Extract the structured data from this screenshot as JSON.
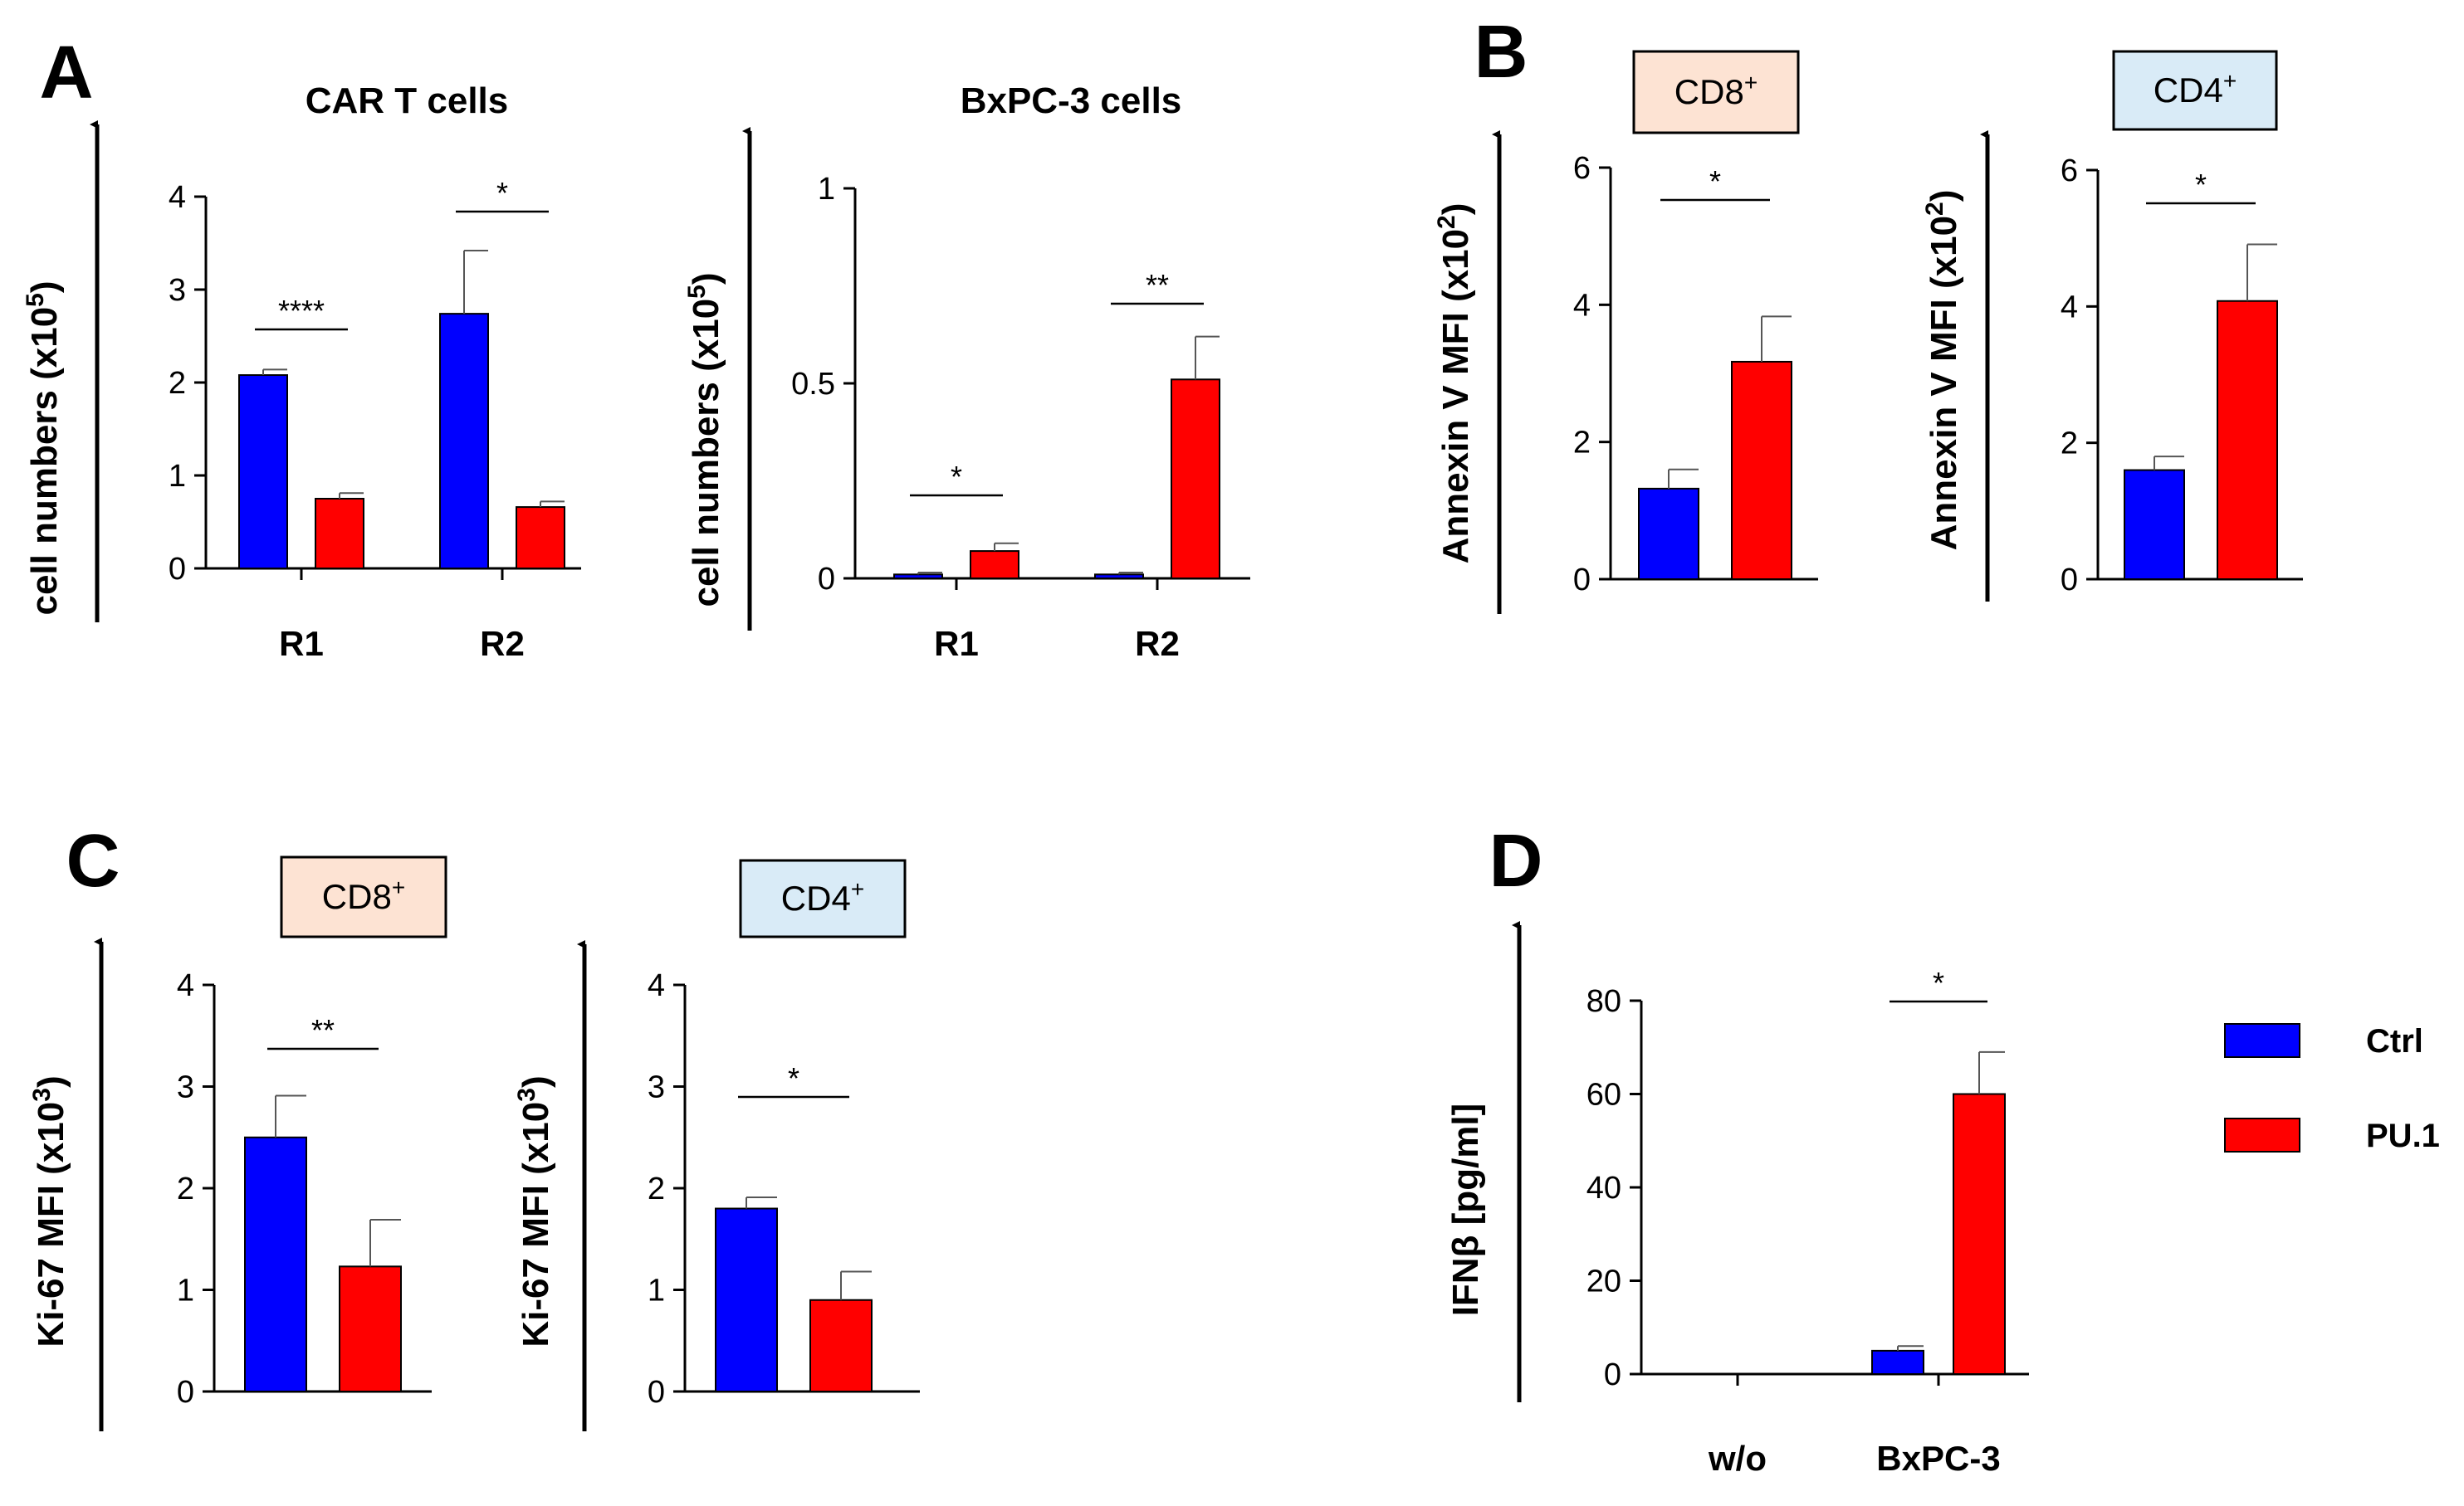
{
  "colors": {
    "ctrl": "#0000ff",
    "pu1": "#ff0000",
    "cd8_box": "#fde3d3",
    "cd4_box": "#d9ebf7"
  },
  "legend": [
    {
      "label": "Ctrl",
      "color": "#0000ff"
    },
    {
      "label": "PU.1",
      "color": "#ff0000"
    }
  ],
  "chart_data": [
    {
      "panel": "A",
      "type": "bar",
      "title": "CAR T cells",
      "box_label": "",
      "ylabel": "cell numbers (x10",
      "ylabel_sup": "5",
      "ylabel_end": ")",
      "categories": [
        "R1",
        "R2"
      ],
      "series": [
        {
          "name": "Ctrl",
          "color": "#0000ff",
          "values": [
            2.08,
            2.74
          ],
          "errors": [
            0.06,
            0.68
          ]
        },
        {
          "name": "PU.1",
          "color": "#ff0000",
          "values": [
            0.75,
            0.66
          ],
          "errors": [
            0.06,
            0.06
          ]
        }
      ],
      "ylim": [
        0,
        4
      ],
      "yticks": [
        0,
        1,
        2,
        3,
        4
      ],
      "ytick_labels": [
        "0",
        "1",
        "2",
        "3",
        "4"
      ],
      "significance": [
        "****",
        "*"
      ]
    },
    {
      "panel": "",
      "type": "bar",
      "title": "BxPC-3 cells",
      "box_label": "",
      "ylabel": "cell numbers (x10",
      "ylabel_sup": "5",
      "ylabel_end": ")",
      "categories": [
        "R1",
        "R2"
      ],
      "series": [
        {
          "name": "Ctrl",
          "color": "#0000ff",
          "values": [
            0.01,
            0.01
          ],
          "errors": [
            0.005,
            0.005
          ]
        },
        {
          "name": "PU.1",
          "color": "#ff0000",
          "values": [
            0.07,
            0.51
          ],
          "errors": [
            0.02,
            0.11
          ]
        }
      ],
      "ylim": [
        0,
        1
      ],
      "yticks": [
        0,
        0.5,
        1
      ],
      "ytick_labels": [
        "0",
        "0.5",
        "1"
      ],
      "significance": [
        "*",
        "**"
      ]
    },
    {
      "panel": "B",
      "type": "bar",
      "title": "",
      "box_label": "CD8",
      "box_sup": "+",
      "box_color": "#fde3d3",
      "ylabel": "Annexin V MFI (x10",
      "ylabel_sup": "2",
      "ylabel_end": ")",
      "categories": [
        ""
      ],
      "series": [
        {
          "name": "Ctrl",
          "color": "#0000ff",
          "values": [
            1.32
          ],
          "errors": [
            0.28
          ]
        },
        {
          "name": "PU.1",
          "color": "#ff0000",
          "values": [
            3.17
          ],
          "errors": [
            0.66
          ]
        }
      ],
      "ylim": [
        0,
        6
      ],
      "yticks": [
        0,
        2,
        4,
        6
      ],
      "ytick_labels": [
        "0",
        "2",
        "4",
        "6"
      ],
      "significance": [
        "*"
      ]
    },
    {
      "panel": "",
      "type": "bar",
      "title": "",
      "box_label": "CD4",
      "box_sup": "+",
      "box_color": "#d9ebf7",
      "ylabel": "Annexin V MFI (x10",
      "ylabel_sup": "2",
      "ylabel_end": ")",
      "categories": [
        ""
      ],
      "series": [
        {
          "name": "Ctrl",
          "color": "#0000ff",
          "values": [
            1.6
          ],
          "errors": [
            0.2
          ]
        },
        {
          "name": "PU.1",
          "color": "#ff0000",
          "values": [
            4.08
          ],
          "errors": [
            0.83
          ]
        }
      ],
      "ylim": [
        0,
        6
      ],
      "yticks": [
        0,
        2,
        4,
        6
      ],
      "ytick_labels": [
        "0",
        "2",
        "4",
        "6"
      ],
      "significance": [
        "*"
      ]
    },
    {
      "panel": "C",
      "type": "bar",
      "title": "",
      "box_label": "CD8",
      "box_sup": "+",
      "box_color": "#fde3d3",
      "ylabel": "Ki-67 MFI (x10",
      "ylabel_sup": "3",
      "ylabel_end": ")",
      "categories": [
        ""
      ],
      "series": [
        {
          "name": "Ctrl",
          "color": "#0000ff",
          "values": [
            2.5
          ],
          "errors": [
            0.41
          ]
        },
        {
          "name": "PU.1",
          "color": "#ff0000",
          "values": [
            1.23
          ],
          "errors": [
            0.46
          ]
        }
      ],
      "ylim": [
        0,
        4
      ],
      "yticks": [
        0,
        1,
        2,
        3,
        4
      ],
      "ytick_labels": [
        "0",
        "1",
        "2",
        "3",
        "4"
      ],
      "significance": [
        "**"
      ]
    },
    {
      "panel": "",
      "type": "bar",
      "title": "",
      "box_label": "CD4",
      "box_sup": "+",
      "box_color": "#d9ebf7",
      "ylabel": "Ki-67 MFI (x10",
      "ylabel_sup": "3",
      "ylabel_end": ")",
      "categories": [
        ""
      ],
      "series": [
        {
          "name": "Ctrl",
          "color": "#0000ff",
          "values": [
            1.8
          ],
          "errors": [
            0.11
          ]
        },
        {
          "name": "PU.1",
          "color": "#ff0000",
          "values": [
            0.9
          ],
          "errors": [
            0.28
          ]
        }
      ],
      "ylim": [
        0,
        4
      ],
      "yticks": [
        0,
        1,
        2,
        3,
        4
      ],
      "ytick_labels": [
        "0",
        "1",
        "2",
        "3",
        "4"
      ],
      "significance": [
        "*"
      ]
    },
    {
      "panel": "D",
      "type": "bar",
      "title": "",
      "box_label": "",
      "ylabel": "IFNβ [pg/ml]",
      "ylabel_sup": "",
      "ylabel_end": "",
      "categories": [
        "w/o",
        "BxPC-3"
      ],
      "series": [
        {
          "name": "Ctrl",
          "color": "#0000ff",
          "values": [
            0,
            5
          ],
          "errors": [
            0,
            1
          ]
        },
        {
          "name": "PU.1",
          "color": "#ff0000",
          "values": [
            0,
            60
          ],
          "errors": [
            0,
            9
          ]
        }
      ],
      "ylim": [
        0,
        80
      ],
      "yticks": [
        0,
        20,
        40,
        60,
        80
      ],
      "ytick_labels": [
        "0",
        "20",
        "40",
        "60",
        "80"
      ],
      "significance": [
        "",
        "*"
      ]
    }
  ]
}
